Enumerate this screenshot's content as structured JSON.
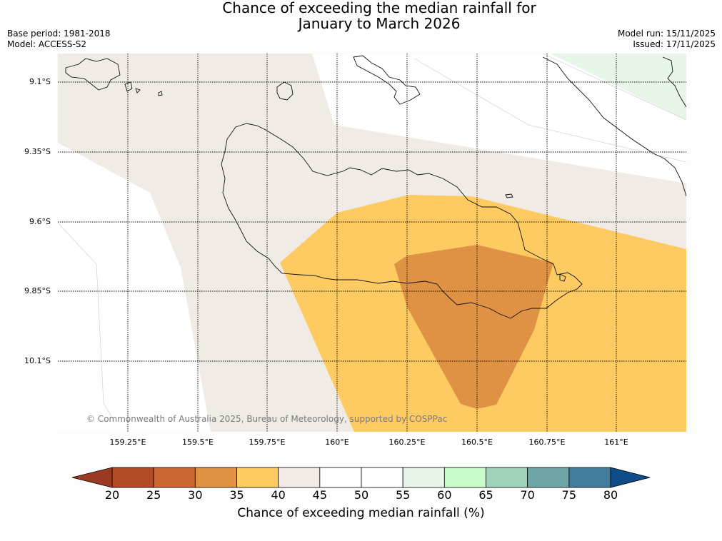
{
  "header": {
    "title_line1": "Chance of exceeding the median rainfall for",
    "title_line2": "January to March 2026",
    "base_period": "Base period: 1981-2018",
    "model": "Model: ACCESS-S2",
    "model_run": "Model run: 15/11/2025",
    "issued": "Issued: 17/11/2025"
  },
  "map": {
    "lat_labels": [
      "9.1°S",
      "9.35°S",
      "9.6°S",
      "9.85°S",
      "10.1°S"
    ],
    "lon_labels": [
      "159.25°E",
      "159.5°E",
      "159.75°E",
      "160°E",
      "160.25°E",
      "160.5°E",
      "160.75°E",
      "161°E"
    ],
    "copyright": "© Commonwealth of Australia 2025, Bureau of Meteorology, supported by COSPPac"
  },
  "colorbar": {
    "title": "Chance of exceeding median rainfall (%)",
    "ticks": [
      "20",
      "25",
      "30",
      "35",
      "40",
      "45",
      "50",
      "55",
      "60",
      "65",
      "70",
      "75",
      "80"
    ],
    "under_color": "#9c3a21",
    "over_color": "#0f4c8a",
    "colors": [
      "#b24b26",
      "#cc6633",
      "#e09244",
      "#fecb63",
      "#f0ebe5",
      "#ffffff",
      "#ffffff",
      "#e9f5e8",
      "#c8fcc8",
      "#9dd3bb",
      "#6fa5a6",
      "#427b9c"
    ]
  }
}
